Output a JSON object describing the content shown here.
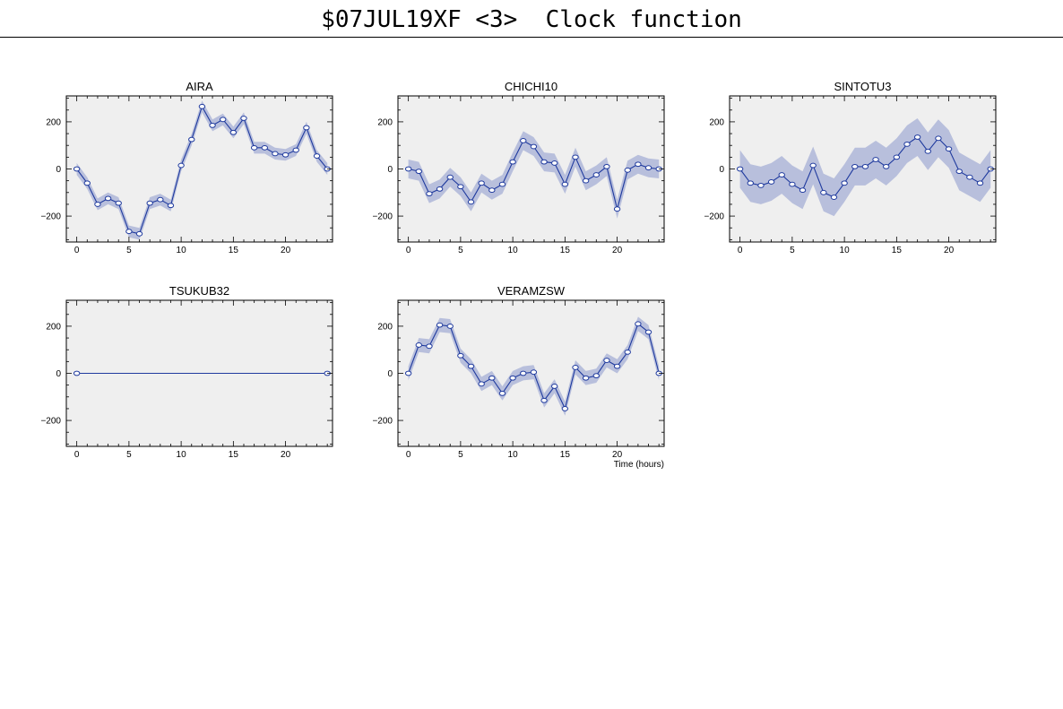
{
  "header": {
    "title": "$07JUL19XF <3>  Clock function"
  },
  "style": {
    "panel_bg": "#efefef",
    "line": "#1f3a9e",
    "band": "#b8bfdc",
    "marker_fill": "#ffffff"
  },
  "chart_data": [
    {
      "type": "line",
      "title": "AIRA",
      "x": [
        0,
        1,
        2,
        3,
        4,
        5,
        6,
        7,
        8,
        9,
        10,
        11,
        12,
        13,
        14,
        15,
        16,
        17,
        18,
        19,
        20,
        21,
        22,
        23,
        24
      ],
      "values": [
        0,
        -60,
        -150,
        -125,
        -145,
        -265,
        -275,
        -145,
        -130,
        -155,
        15,
        125,
        265,
        185,
        210,
        155,
        215,
        90,
        90,
        65,
        60,
        80,
        175,
        55,
        0
      ],
      "band": [
        25,
        25,
        25,
        25,
        25,
        25,
        25,
        25,
        25,
        25,
        25,
        25,
        25,
        25,
        25,
        25,
        25,
        25,
        25,
        25,
        25,
        25,
        25,
        25,
        25
      ],
      "xlim": [
        -1,
        24.5
      ],
      "ylim": [
        -310,
        310
      ],
      "xticks": [
        0,
        5,
        10,
        15,
        20
      ],
      "yticks": [
        -200,
        0,
        200
      ],
      "xlabel": ""
    },
    {
      "type": "line",
      "title": "CHICHI10",
      "x": [
        0,
        1,
        2,
        3,
        4,
        5,
        6,
        7,
        8,
        9,
        10,
        11,
        12,
        13,
        14,
        15,
        16,
        17,
        18,
        19,
        20,
        21,
        22,
        23,
        24
      ],
      "values": [
        0,
        -10,
        -105,
        -85,
        -35,
        -75,
        -140,
        -60,
        -90,
        -65,
        30,
        120,
        95,
        30,
        25,
        -65,
        50,
        -50,
        -25,
        10,
        -170,
        -5,
        20,
        5,
        0
      ],
      "band": [
        40,
        40,
        40,
        40,
        40,
        40,
        40,
        40,
        40,
        40,
        40,
        40,
        40,
        40,
        40,
        40,
        40,
        40,
        40,
        40,
        40,
        40,
        40,
        40,
        40
      ],
      "xlim": [
        -1,
        24.5
      ],
      "ylim": [
        -310,
        310
      ],
      "xticks": [
        0,
        5,
        10,
        15,
        20
      ],
      "yticks": [
        -200,
        0,
        200
      ],
      "xlabel": ""
    },
    {
      "type": "line",
      "title": "SINTOTU3",
      "x": [
        0,
        1,
        2,
        3,
        4,
        5,
        6,
        7,
        8,
        9,
        10,
        11,
        12,
        13,
        14,
        15,
        16,
        17,
        18,
        19,
        20,
        21,
        22,
        23,
        24
      ],
      "values": [
        0,
        -60,
        -70,
        -55,
        -25,
        -65,
        -90,
        15,
        -100,
        -120,
        -60,
        10,
        10,
        40,
        10,
        50,
        105,
        135,
        75,
        130,
        85,
        -10,
        -35,
        -60,
        0
      ],
      "band": [
        80,
        80,
        80,
        80,
        80,
        80,
        80,
        80,
        80,
        80,
        80,
        80,
        80,
        80,
        80,
        80,
        80,
        80,
        80,
        80,
        80,
        80,
        80,
        80,
        80
      ],
      "xlim": [
        -1,
        24.5
      ],
      "ylim": [
        -310,
        310
      ],
      "xticks": [
        0,
        5,
        10,
        15,
        20
      ],
      "yticks": [
        -200,
        0,
        200
      ],
      "xlabel": ""
    },
    {
      "type": "line",
      "title": "TSUKUB32",
      "x": [
        0,
        24
      ],
      "values": [
        0,
        0
      ],
      "band": [
        0,
        0
      ],
      "xlim": [
        -1,
        24.5
      ],
      "ylim": [
        -310,
        310
      ],
      "xticks": [
        0,
        5,
        10,
        15,
        20
      ],
      "yticks": [
        -200,
        0,
        200
      ],
      "xlabel": ""
    },
    {
      "type": "line",
      "title": "VERAMZSW",
      "x": [
        0,
        1,
        2,
        3,
        4,
        5,
        6,
        7,
        8,
        9,
        10,
        11,
        12,
        13,
        14,
        15,
        16,
        17,
        18,
        19,
        20,
        21,
        22,
        23,
        24
      ],
      "values": [
        0,
        120,
        115,
        205,
        200,
        75,
        30,
        -45,
        -20,
        -85,
        -20,
        0,
        5,
        -115,
        -55,
        -150,
        25,
        -20,
        -10,
        55,
        30,
        90,
        210,
        175,
        0
      ],
      "band": [
        30,
        30,
        30,
        30,
        30,
        30,
        30,
        30,
        30,
        30,
        30,
        30,
        30,
        30,
        30,
        30,
        30,
        30,
        30,
        30,
        30,
        30,
        30,
        30,
        30
      ],
      "xlim": [
        -1,
        24.5
      ],
      "ylim": [
        -310,
        310
      ],
      "xticks": [
        0,
        5,
        10,
        15,
        20
      ],
      "yticks": [
        -200,
        0,
        200
      ],
      "xlabel": "Time (hours)"
    }
  ]
}
